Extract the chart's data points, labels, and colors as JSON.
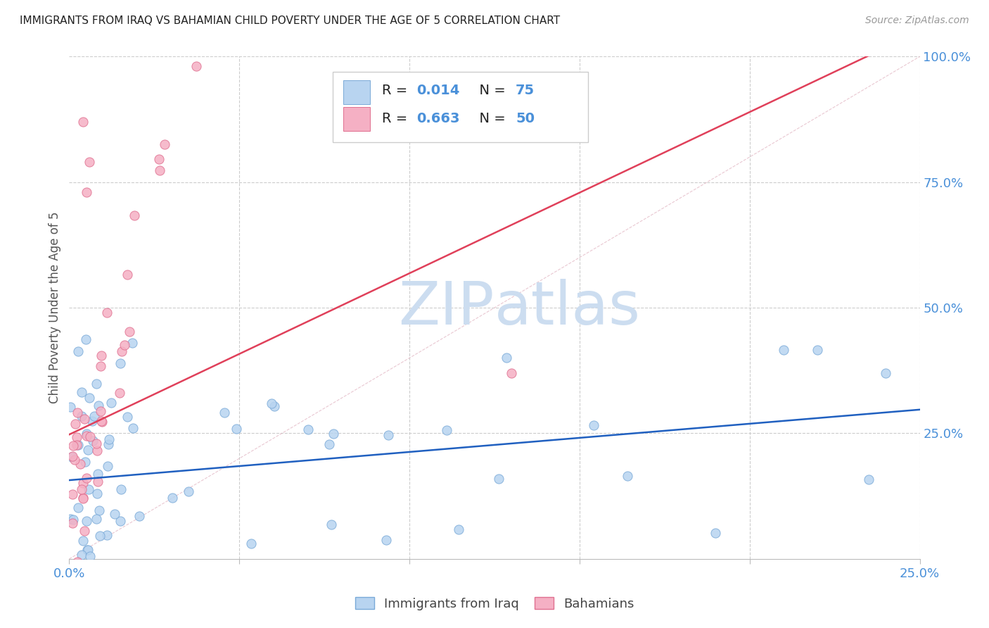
{
  "title": "IMMIGRANTS FROM IRAQ VS BAHAMIAN CHILD POVERTY UNDER THE AGE OF 5 CORRELATION CHART",
  "source": "Source: ZipAtlas.com",
  "ylabel": "Child Poverty Under the Age of 5",
  "legend1_label": "Immigrants from Iraq",
  "legend2_label": "Bahamians",
  "R1": "0.014",
  "N1": "75",
  "R2": "0.663",
  "N2": "50",
  "color1_face": "#b8d4f0",
  "color1_edge": "#7aaad8",
  "color1_line": "#2060c0",
  "color2_face": "#f5b0c4",
  "color2_edge": "#e07090",
  "color2_line": "#e0405a",
  "diag_color": "#e0b0be",
  "watermark_zip": "ZIP",
  "watermark_atlas": "atlas",
  "watermark_color_zip": "#c8d8f0",
  "watermark_color_atlas": "#c8d8f0",
  "grid_color": "#cccccc",
  "tick_color": "#4a90d9",
  "title_color": "#222222",
  "source_color": "#999999",
  "ylabel_color": "#555555",
  "background": "#ffffff",
  "xlim": [
    0,
    0.25
  ],
  "ylim": [
    0,
    1.0
  ]
}
